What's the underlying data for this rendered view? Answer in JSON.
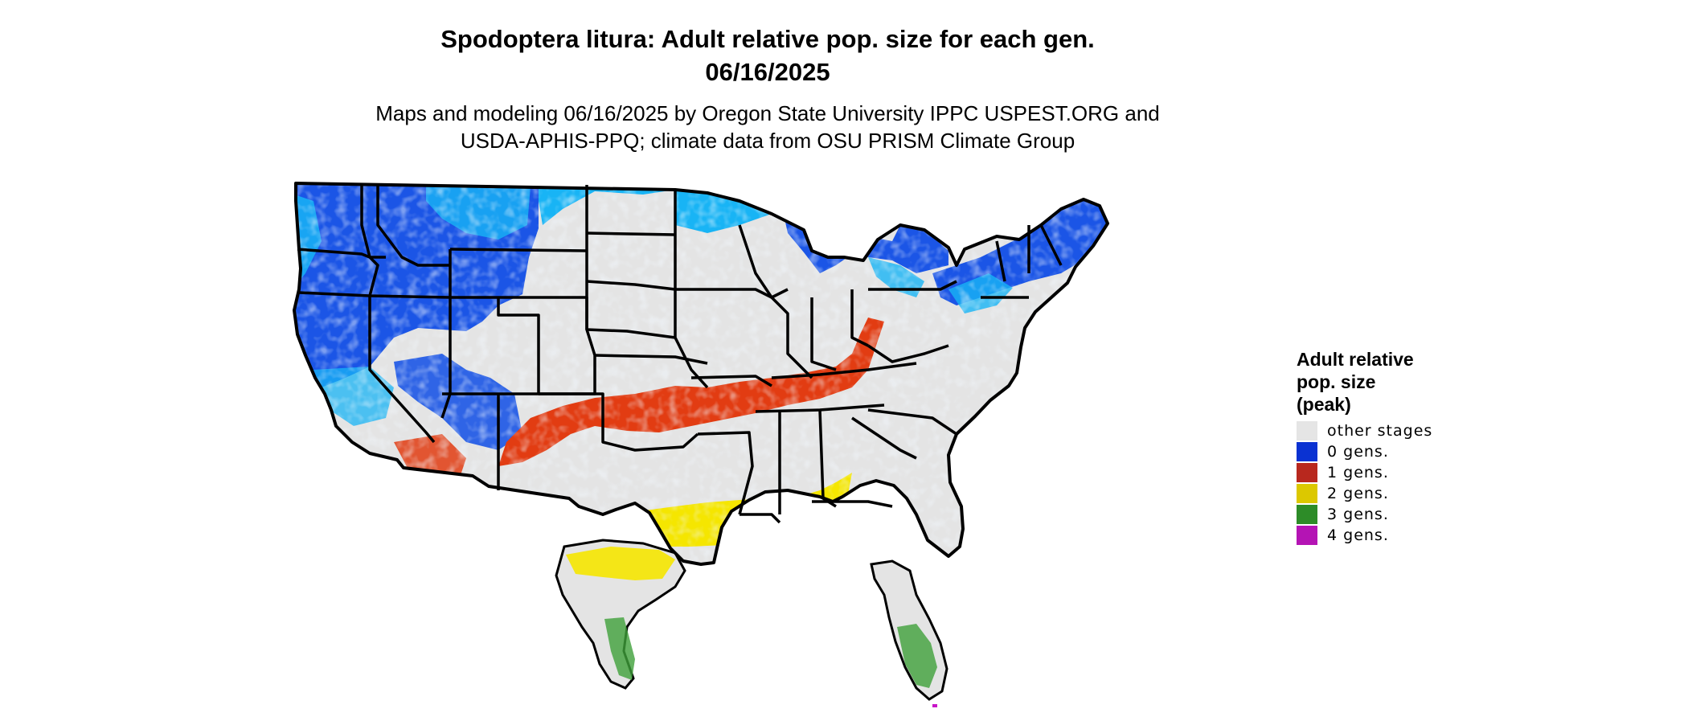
{
  "title": {
    "line1": "Spodoptera litura: Adult relative pop. size for each gen.",
    "line2": "06/16/2025"
  },
  "subtitle": {
    "line1": "Maps and modeling 06/16/2025 by Oregon State University IPPC USPEST.ORG and",
    "line2": "USDA-APHIS-PPQ; climate data from OSU PRISM Climate Group"
  },
  "legend": {
    "title_lines": [
      "Adult relative",
      "pop. size",
      "(peak)"
    ],
    "items": [
      {
        "label": "other stages",
        "color": "#e5e5e5"
      },
      {
        "label": "0 gens.",
        "color": "#0a32d2"
      },
      {
        "label": "1 gens.",
        "color": "#b8281e"
      },
      {
        "label": "2 gens.",
        "color": "#dcc800"
      },
      {
        "label": "3 gens.",
        "color": "#2d8c28"
      },
      {
        "label": "4 gens.",
        "color": "#b414b4"
      }
    ]
  },
  "map_colors": {
    "base": "#e4e4e4",
    "cold_dark": "#1b55e6",
    "cold_light": "#18b4f5",
    "gen1": "#e23c12",
    "gen2": "#f5e600",
    "gen3": "#3fa03a",
    "gen4": "#c814c8",
    "border": "#000000"
  }
}
